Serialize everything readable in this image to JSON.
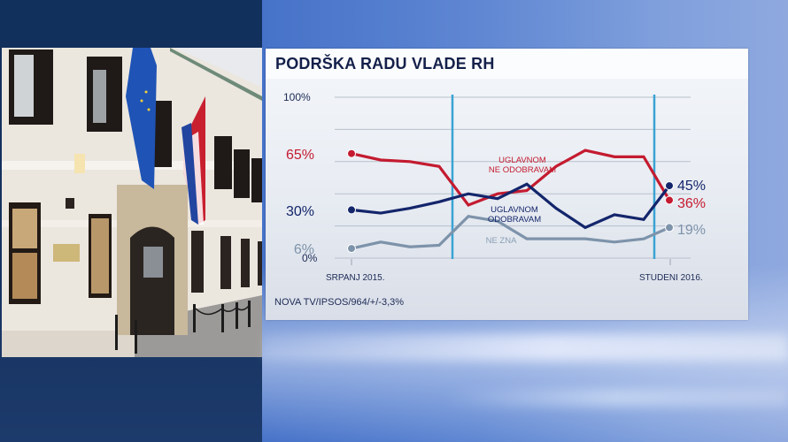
{
  "title": "PODRŠKA RADU VLADE RH",
  "source": "NOVA TV/IPSOS/964/+/-3,3%",
  "photo": {
    "description": "Government building (Banski dvori) with EU and Croatian flags"
  },
  "colors": {
    "red": "#c41b30",
    "navy": "#13256b",
    "gray": "#7d93aa",
    "marker_line": "#3aa3d4",
    "grid": "#b9c0cb",
    "axis_text": "#1c2a55"
  },
  "chart_data": {
    "type": "line",
    "title": "PODRŠKA RADU VLADE RH",
    "xlabel": "",
    "ylabel": "",
    "ylim": [
      0,
      100
    ],
    "y_ticks": [
      "0%",
      "100%"
    ],
    "grid": true,
    "x_labels": {
      "start": "SRPANJ 2015.",
      "end": "STUDENI 2016."
    },
    "x": [
      1,
      2,
      3,
      4,
      5,
      6,
      7,
      8,
      9,
      10,
      11,
      12
    ],
    "series": [
      {
        "name": "UGLAVNOM NE ODOBRAVAM",
        "color": "#c41b30",
        "values": [
          65,
          61,
          60,
          57,
          33,
          40,
          42,
          57,
          67,
          63,
          63,
          36
        ],
        "start_label": "65%",
        "end_label": "36%"
      },
      {
        "name": "UGLAVNOM ODOBRAVAM",
        "color": "#13256b",
        "values": [
          30,
          28,
          31,
          35,
          40,
          37,
          46,
          31,
          19,
          27,
          24,
          45
        ],
        "start_label": "30%",
        "end_label": "45%"
      },
      {
        "name": "NE ZNA",
        "color": "#7d93aa",
        "values": [
          6,
          10,
          7,
          8,
          26,
          23,
          12,
          12,
          12,
          10,
          12,
          19
        ],
        "start_label": "6%",
        "end_label": "19%"
      }
    ],
    "annotations": [
      {
        "text": "UGLAVNOM",
        "series": "UGLAVNOM NE ODOBRAVAM"
      },
      {
        "text": "NE ODOBRAVAM",
        "series": "UGLAVNOM NE ODOBRAVAM"
      },
      {
        "text": "UGLAVNOM",
        "series": "UGLAVNOM ODOBRAVAM"
      },
      {
        "text": "ODOBRAVAM",
        "series": "UGLAVNOM ODOBRAVAM"
      },
      {
        "text": "NE ZNA",
        "series": "NE ZNA"
      }
    ],
    "vertical_markers": [
      4.45,
      11.5
    ]
  }
}
